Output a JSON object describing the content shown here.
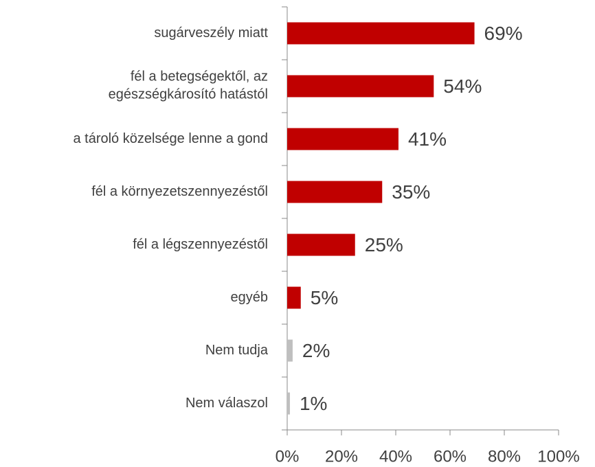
{
  "chart_data": {
    "type": "bar",
    "orientation": "horizontal",
    "categories": [
      "sugárveszély miatt",
      "fél a betegségektől, az\negészségkárosító hatástól",
      "a tároló közelsége lenne a gond",
      "fél a környezetszennyezéstől",
      "fél a légszennyezéstől",
      "egyéb",
      "Nem tudja",
      "Nem válaszol"
    ],
    "values": [
      69,
      54,
      41,
      35,
      25,
      5,
      2,
      1
    ],
    "value_labels": [
      "69%",
      "54%",
      "41%",
      "35%",
      "25%",
      "5%",
      "2%",
      "1%"
    ],
    "colors": [
      "#c00000",
      "#c00000",
      "#c00000",
      "#c00000",
      "#c00000",
      "#c00000",
      "#bfbfbf",
      "#bfbfbf"
    ],
    "xlim": [
      0,
      100
    ],
    "xticks": [
      {
        "value": 0,
        "label": "0%"
      },
      {
        "value": 20,
        "label": "20%"
      },
      {
        "value": 40,
        "label": "40%"
      },
      {
        "value": 60,
        "label": "60%"
      },
      {
        "value": 80,
        "label": "80%"
      },
      {
        "value": 100,
        "label": "100%"
      }
    ]
  }
}
